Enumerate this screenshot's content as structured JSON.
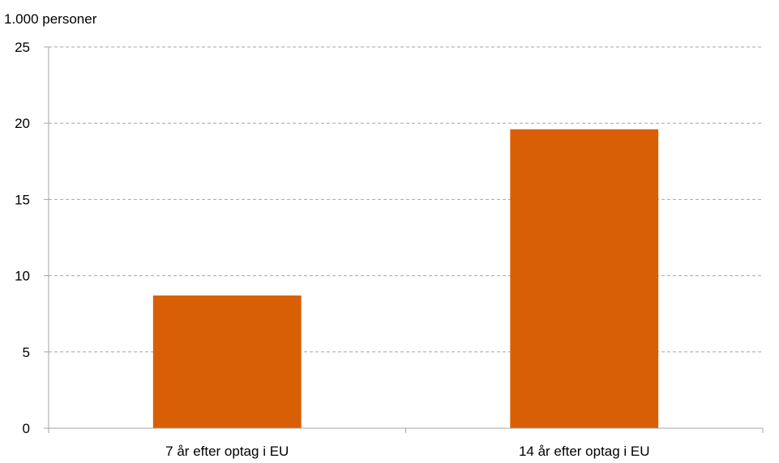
{
  "chart_data": {
    "type": "bar",
    "ylabel": "1.000 personer",
    "categories": [
      "7 år efter optag i EU",
      "14 år efter optag i EU"
    ],
    "values": [
      8.7,
      19.6
    ],
    "ylim": [
      0,
      25
    ],
    "yticks": [
      "0",
      "5",
      "10",
      "15",
      "20",
      "25"
    ],
    "grid": true,
    "legend": "none",
    "bar_color": "#D95F06",
    "grid_color": "#A6A6A6",
    "axis_color": "#A6A6A6"
  }
}
